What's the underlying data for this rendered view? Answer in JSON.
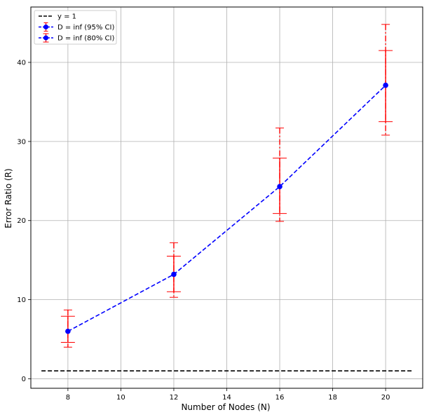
{
  "chart_data": {
    "type": "line",
    "xlabel": "Number of Nodes (N)",
    "ylabel": "Error Ratio (R)",
    "xlim": [
      6.6,
      21.4
    ],
    "ylim": [
      -1.2,
      47.0
    ],
    "xticks": [
      8,
      10,
      12,
      14,
      16,
      18,
      20
    ],
    "yticks": [
      0,
      10,
      20,
      30,
      40
    ],
    "grid": true,
    "legend_position": "top-left",
    "colors": {
      "reference": "#000000",
      "line": "#0000ff",
      "marker": "#0000ff",
      "error_bar": "#ff0000"
    },
    "reference_line": {
      "name": "y = 1",
      "x": [
        7,
        21
      ],
      "y": [
        1,
        1
      ]
    },
    "x": [
      8,
      12,
      16,
      20
    ],
    "y": [
      6.0,
      13.2,
      24.3,
      37.1
    ],
    "series": [
      {
        "name": "D = inf (95% CI)",
        "lower": [
          4.0,
          10.3,
          19.9,
          30.8
        ],
        "upper": [
          8.7,
          17.2,
          31.7,
          44.8
        ]
      },
      {
        "name": "D = inf (80% CI)",
        "lower": [
          4.6,
          11.0,
          20.9,
          32.5
        ],
        "upper": [
          7.9,
          15.5,
          27.9,
          41.5
        ]
      }
    ]
  }
}
